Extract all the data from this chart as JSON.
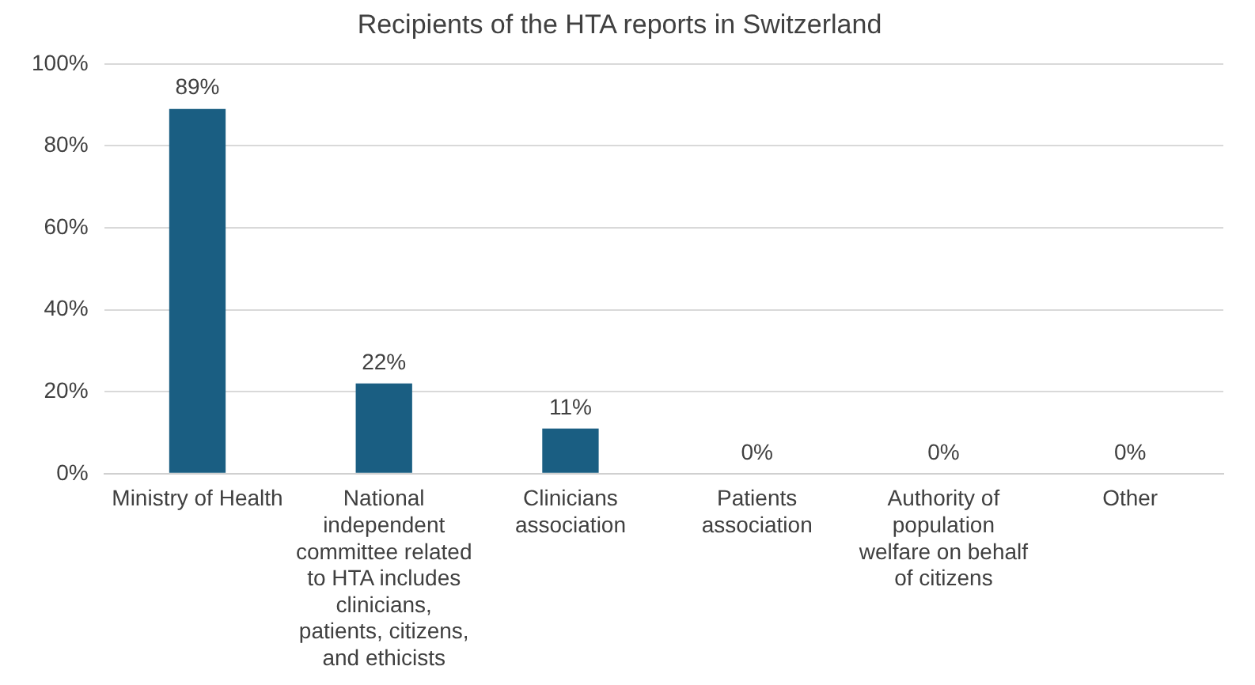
{
  "chart_data": {
    "type": "bar",
    "title": "Recipients of the HTA reports in Switzerland",
    "categories": [
      "Ministry of Health",
      "National independent committee related to HTA includes clinicians, patients, citizens, and ethicists",
      "Clinicians association",
      "Patients association",
      "Authority of population welfare on behalf of citizens",
      "Other"
    ],
    "values": [
      89,
      22,
      11,
      0,
      0,
      0
    ],
    "color": "#1a5e82",
    "ylim": [
      0,
      100
    ],
    "yticks": [
      {
        "value": 0,
        "label": "0%"
      },
      {
        "value": 20,
        "label": "20%"
      },
      {
        "value": 40,
        "label": "40%"
      },
      {
        "value": 60,
        "label": "60%"
      },
      {
        "value": 80,
        "label": "80%"
      },
      {
        "value": 100,
        "label": "100%"
      }
    ],
    "value_labels": [
      "89%",
      "22%",
      "11%",
      "0%",
      "0%",
      "0%"
    ],
    "grid": "y",
    "legend": false
  }
}
